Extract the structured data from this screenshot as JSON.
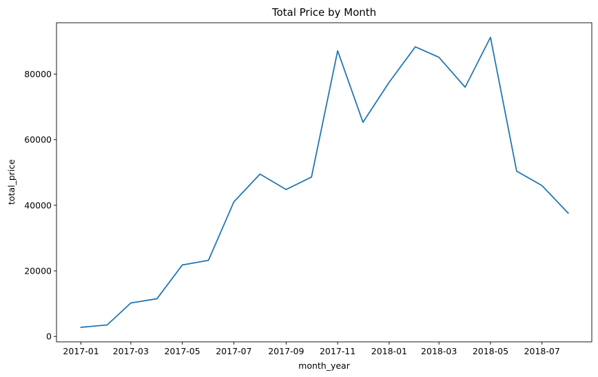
{
  "chart_data": {
    "type": "line",
    "title": "Total Price by Month",
    "xlabel": "month_year",
    "ylabel": "total_price",
    "x": [
      "2017-01",
      "2017-02",
      "2017-03",
      "2017-04",
      "2017-05",
      "2017-06",
      "2017-07",
      "2017-08",
      "2017-09",
      "2017-10",
      "2017-11",
      "2017-12",
      "2018-01",
      "2018-02",
      "2018-03",
      "2018-04",
      "2018-05",
      "2018-06",
      "2018-07",
      "2018-08"
    ],
    "series": [
      {
        "values": [
          2800,
          3500,
          10200,
          11500,
          21800,
          23200,
          41000,
          49500,
          44800,
          48600,
          87100,
          65300,
          77500,
          88300,
          85100,
          76000,
          91200,
          50400,
          46000,
          37600
        ],
        "color": "#1f77b4"
      }
    ],
    "xticks": [
      "2017-01",
      "2017-03",
      "2017-05",
      "2017-07",
      "2017-09",
      "2017-11",
      "2018-01",
      "2018-03",
      "2018-05",
      "2018-07"
    ],
    "yticks": [
      0,
      20000,
      40000,
      60000,
      80000
    ],
    "ylim": [
      -1643,
      95643
    ],
    "xlim": [
      "2016-12-03",
      "2018-08-29"
    ],
    "grid": false,
    "legend": "none"
  }
}
